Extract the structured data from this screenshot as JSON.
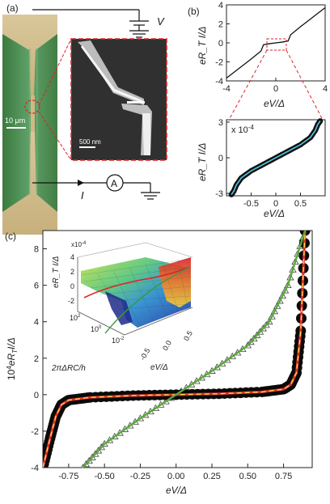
{
  "panels": {
    "a": {
      "label": "(a)",
      "voltage_label": "V",
      "current_label": "I",
      "ammeter_label": "A",
      "scale_bar_main": "10 μm",
      "scale_bar_inset": "500 nm"
    },
    "b": {
      "label": "(b)"
    },
    "c": {
      "label": "(c)"
    }
  },
  "chart_data": [
    {
      "panel": "b-top",
      "type": "line",
      "xlabel": "eV/Δ",
      "ylabel": "eR_T I/Δ",
      "xlim": [
        -4,
        4
      ],
      "ylim": [
        -4,
        4
      ],
      "xticks": [
        "-4",
        "0",
        "4"
      ],
      "yticks": [
        "-4",
        "-2",
        "0",
        "2",
        "4"
      ],
      "series": [
        {
          "x": [
            -4,
            -3,
            -2,
            -1.2,
            -1,
            -0.5,
            0,
            0.5,
            1,
            1.2,
            2,
            3,
            4
          ],
          "y": [
            -3.7,
            -2.7,
            -1.7,
            -0.85,
            -0.2,
            -0.08,
            0,
            0.08,
            0.2,
            0.85,
            1.7,
            2.7,
            3.7
          ]
        }
      ]
    },
    {
      "panel": "b-bottom",
      "type": "scatter",
      "xlabel": "eV/Δ",
      "ylabel": "eR_T I/Δ",
      "multiplier": "x 10",
      "multiplier_exp": "-4",
      "xlim": [
        -1,
        1
      ],
      "ylim": [
        -3.2,
        3.2
      ],
      "xticks": [
        "-0.5",
        "0",
        "0.5"
      ],
      "yticks": [
        "-3",
        "0",
        "3"
      ],
      "series": [
        {
          "x": [
            -0.9,
            -0.85,
            -0.8,
            -0.7,
            -0.5,
            -0.25,
            0,
            0.25,
            0.5,
            0.7,
            0.8,
            0.85,
            0.9
          ],
          "y": [
            -3.1,
            -2.8,
            -2.3,
            -1.7,
            -1.1,
            -0.55,
            0,
            0.55,
            1.1,
            1.7,
            2.3,
            2.8,
            3.1
          ]
        }
      ]
    },
    {
      "panel": "c",
      "type": "scatter",
      "xlabel": "eV/Δ",
      "ylabel": "10",
      "ylabel_exp": "4",
      "ylabel_rest": "eR",
      "ylabel_sub": "T",
      "ylabel_end": "I/Δ",
      "xlim": [
        -0.93,
        0.95
      ],
      "ylim": [
        -4,
        9
      ],
      "xticks": [
        "-0.75",
        "-0.50",
        "-0.25",
        "0.00",
        "0.25",
        "0.50",
        "0.75"
      ],
      "xtick_values": [
        -0.75,
        -0.5,
        -0.25,
        0,
        0.25,
        0.5,
        0.75
      ],
      "yticks": [
        "-4",
        "-2",
        "0",
        "2",
        "4",
        "6",
        "8"
      ],
      "ytick_values": [
        -4,
        -2,
        0,
        2,
        4,
        6,
        8
      ],
      "series": [
        {
          "x": [
            -0.93,
            -0.88,
            -0.84,
            -0.8,
            -0.75,
            -0.6,
            -0.3,
            0,
            0.3,
            0.6,
            0.75,
            0.8,
            0.84,
            0.87,
            0.9
          ],
          "y": [
            -4,
            -2.4,
            -1.2,
            -0.55,
            -0.3,
            -0.15,
            -0.05,
            0,
            0.05,
            0.15,
            0.3,
            0.55,
            1.2,
            3.5,
            9
          ]
        },
        {
          "x": [
            -0.65,
            -0.5,
            -0.25,
            0,
            0.25,
            0.5,
            0.65,
            0.78,
            0.9
          ],
          "y": [
            -4,
            -2.7,
            -1.3,
            0,
            1.3,
            2.7,
            4,
            6,
            9
          ]
        }
      ]
    },
    {
      "panel": "c-inset",
      "type": "surface",
      "zlabel": "eR_T I/Δ",
      "zmultiplier": "x10",
      "zmultiplier_exp": "-4",
      "xlabel": "eV/Δ",
      "ylabel": "2πΔRC/h",
      "zticks": [
        "4",
        "2",
        "0",
        "-2"
      ],
      "xticks": [
        "0.5",
        "0.0",
        "-0.5"
      ],
      "yticks": [
        "10",
        "10",
        "10"
      ],
      "ytick_exps": [
        "2",
        "0",
        "-2"
      ]
    }
  ]
}
